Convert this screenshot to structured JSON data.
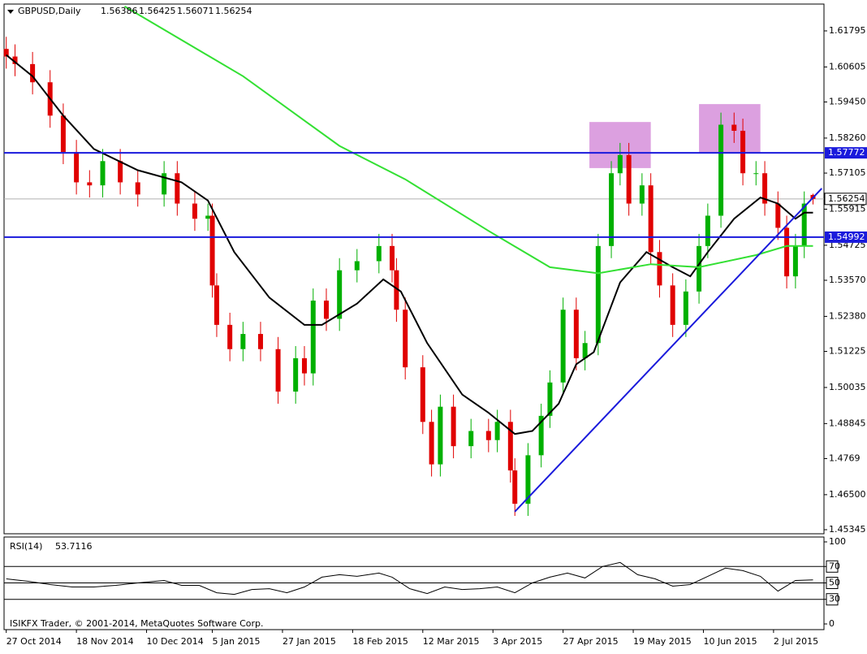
{
  "chart_data": [
    {
      "type": "candlestick",
      "title": "GBPUSD,Daily",
      "x": [
        0,
        2,
        6,
        10,
        13,
        16,
        19,
        22,
        26,
        30,
        36,
        39,
        43,
        46,
        47,
        48,
        51,
        54,
        58,
        62,
        66,
        68,
        70,
        73,
        76,
        80,
        85,
        88,
        89,
        91,
        95,
        97,
        99,
        102,
        106,
        110,
        112,
        115,
        116,
        119,
        122,
        124,
        127,
        130,
        132,
        135,
        138,
        140,
        142,
        145,
        147,
        149,
        152,
        155,
        158,
        160,
        163,
        166,
        168,
        171,
        173,
        176,
        178,
        180,
        182,
        184
      ],
      "open": [
        1.612,
        1.6095,
        1.607,
        1.601,
        1.59,
        1.578,
        1.568,
        1.567,
        1.575,
        1.568,
        1.564,
        1.571,
        1.561,
        1.556,
        1.557,
        1.534,
        1.521,
        1.513,
        1.518,
        1.513,
        1.499,
        1.51,
        1.505,
        1.529,
        1.523,
        1.539,
        1.542,
        1.547,
        1.539,
        1.526,
        1.507,
        1.489,
        1.475,
        1.494,
        1.481,
        1.486,
        1.483,
        1.489,
        1.473,
        1.462,
        1.478,
        1.491,
        1.502,
        1.526,
        1.51,
        1.515,
        1.547,
        1.571,
        1.577,
        1.561,
        1.567,
        1.545,
        1.534,
        1.521,
        1.532,
        1.547,
        1.557,
        1.587,
        1.585,
        1.571,
        1.571,
        1.561,
        1.553,
        1.537,
        1.547,
        1.56386
      ],
      "high": [
        1.616,
        1.6135,
        1.611,
        1.605,
        1.594,
        1.582,
        1.572,
        1.579,
        1.579,
        1.572,
        1.575,
        1.575,
        1.565,
        1.561,
        1.561,
        1.538,
        1.525,
        1.522,
        1.522,
        1.517,
        1.514,
        1.514,
        1.533,
        1.533,
        1.543,
        1.546,
        1.551,
        1.551,
        1.543,
        1.53,
        1.511,
        1.493,
        1.498,
        1.498,
        1.49,
        1.49,
        1.493,
        1.493,
        1.477,
        1.482,
        1.495,
        1.506,
        1.53,
        1.53,
        1.519,
        1.551,
        1.575,
        1.581,
        1.581,
        1.571,
        1.571,
        1.549,
        1.538,
        1.536,
        1.551,
        1.561,
        1.591,
        1.591,
        1.589,
        1.575,
        1.575,
        1.565,
        1.557,
        1.551,
        1.565,
        1.56425
      ],
      "low": [
        1.6055,
        1.603,
        1.597,
        1.586,
        1.574,
        1.564,
        1.563,
        1.563,
        1.564,
        1.56,
        1.56,
        1.557,
        1.552,
        1.552,
        1.53,
        1.517,
        1.509,
        1.509,
        1.509,
        1.495,
        1.495,
        1.501,
        1.501,
        1.519,
        1.519,
        1.535,
        1.538,
        1.535,
        1.522,
        1.503,
        1.485,
        1.471,
        1.471,
        1.477,
        1.477,
        1.479,
        1.479,
        1.469,
        1.458,
        1.458,
        1.474,
        1.487,
        1.498,
        1.506,
        1.506,
        1.511,
        1.543,
        1.567,
        1.557,
        1.557,
        1.541,
        1.53,
        1.517,
        1.517,
        1.528,
        1.543,
        1.553,
        1.581,
        1.567,
        1.567,
        1.557,
        1.549,
        1.533,
        1.533,
        1.543,
        1.56071
      ],
      "close": [
        1.6095,
        1.607,
        1.601,
        1.59,
        1.578,
        1.568,
        1.567,
        1.575,
        1.568,
        1.564,
        1.571,
        1.561,
        1.556,
        1.557,
        1.534,
        1.521,
        1.513,
        1.518,
        1.513,
        1.499,
        1.51,
        1.505,
        1.529,
        1.523,
        1.539,
        1.542,
        1.547,
        1.539,
        1.526,
        1.507,
        1.489,
        1.475,
        1.494,
        1.481,
        1.486,
        1.483,
        1.489,
        1.473,
        1.462,
        1.478,
        1.491,
        1.502,
        1.526,
        1.51,
        1.515,
        1.547,
        1.571,
        1.577,
        1.561,
        1.567,
        1.545,
        1.534,
        1.521,
        1.532,
        1.547,
        1.557,
        1.587,
        1.585,
        1.571,
        1.571,
        1.561,
        1.553,
        1.537,
        1.547,
        1.561,
        1.56254
      ],
      "up_color": "#00b000",
      "down_color": "#e00000",
      "lines": [
        {
          "color": "#000000",
          "x": [
            0,
            6,
            13,
            20,
            30,
            40,
            46,
            52,
            60,
            68,
            72,
            80,
            86,
            90,
            96,
            104,
            110,
            116,
            120,
            126,
            130,
            134,
            140,
            146,
            152,
            156,
            160,
            166,
            172,
            176,
            180,
            182,
            184
          ],
          "values": [
            1.61,
            1.603,
            1.59,
            1.579,
            1.572,
            1.568,
            1.562,
            1.545,
            1.53,
            1.521,
            1.521,
            1.528,
            1.536,
            1.532,
            1.515,
            1.498,
            1.492,
            1.485,
            1.486,
            1.495,
            1.508,
            1.512,
            1.535,
            1.545,
            1.54,
            1.537,
            1.545,
            1.556,
            1.563,
            1.561,
            1.556,
            1.558,
            1.558
          ]
        },
        {
          "color": "#33e033",
          "x": [
            27,
            54,
            76,
            91,
            110,
            124,
            135,
            147,
            158,
            171,
            178,
            184
          ],
          "values": [
            1.626,
            1.603,
            1.58,
            1.569,
            1.552,
            1.54,
            1.538,
            1.541,
            1.54,
            1.544,
            1.547,
            1.547
          ]
        },
        {
          "color": "#1a1adc",
          "x": [
            116,
            186
          ],
          "values": [
            1.4594,
            1.566
          ]
        }
      ],
      "hlines": [
        {
          "value": 1.57772,
          "color": "#1a1adc"
        },
        {
          "value": 1.54992,
          "color": "#1a1adc"
        }
      ],
      "price_line": {
        "value": 1.56254,
        "color": "#b0b0b0"
      },
      "zones": [
        {
          "x": [
            133,
            147
          ],
          "y": [
            1.5727,
            1.5879
          ],
          "color": "#dca0e0"
        },
        {
          "x": [
            158,
            172
          ],
          "y": [
            1.5777,
            1.5938
          ],
          "color": "#dca0e0"
        }
      ],
      "xlim": [
        -0.5,
        186.5
      ],
      "ylim": [
        1.45211,
        1.62679
      ],
      "yticks": [
        1.61795,
        1.60605,
        {
          "value": 1.5945,
          "label": "1.59450"
        },
        {
          "value": 1.5826,
          "label": "1.58260"
        },
        1.57105,
        1.55915,
        1.54725,
        {
          "value": 1.5357,
          "label": "1.53570"
        },
        {
          "value": 1.5238,
          "label": "1.52380"
        },
        1.51225,
        1.50035,
        1.48845,
        1.4769,
        {
          "value": 1.465,
          "label": "1.46500"
        },
        1.45345
      ],
      "xticks": [
        {
          "value": 0,
          "label": "27 Oct 2014"
        },
        {
          "value": 16,
          "label": "18 Nov 2014"
        },
        {
          "value": 32,
          "label": "10 Dec 2014"
        },
        {
          "value": 47,
          "label": "5 Jan 2015"
        },
        {
          "value": 63,
          "label": "27 Jan 2015"
        },
        {
          "value": 79,
          "label": "18 Feb 2015"
        },
        {
          "value": 95,
          "label": "12 Mar 2015"
        },
        {
          "value": 111,
          "label": "3 Apr 2015"
        },
        {
          "value": 127,
          "label": "27 Apr 2015"
        },
        {
          "value": 143,
          "label": "19 May 2015"
        },
        {
          "value": 159,
          "label": "10 Jun 2015"
        },
        {
          "value": 175,
          "label": "2 Jul 2015"
        }
      ]
    },
    {
      "type": "line",
      "title": "RSI(14)",
      "color": "#000000",
      "x": [
        0,
        5,
        10,
        15,
        20,
        25,
        30,
        36,
        40,
        44,
        48,
        52,
        56,
        60,
        64,
        68,
        72,
        76,
        80,
        85,
        88,
        92,
        96,
        100,
        104,
        108,
        112,
        116,
        120,
        124,
        128,
        132,
        136,
        140,
        144,
        148,
        152,
        156,
        160,
        164,
        168,
        172,
        176,
        180,
        184
      ],
      "values": [
        55,
        52,
        48,
        45,
        45,
        47,
        50,
        53,
        47,
        47,
        38,
        36,
        42,
        43,
        38,
        45,
        57,
        60,
        58,
        62,
        57,
        43,
        37,
        45,
        42,
        43,
        45,
        38,
        50,
        57,
        62,
        56,
        70,
        75,
        60,
        55,
        46,
        48,
        58,
        68,
        65,
        58,
        40,
        53,
        53.7116
      ],
      "xlim": [
        -0.5,
        186.5
      ],
      "ylim": [
        0,
        100
      ],
      "yticks": [
        0,
        30,
        50,
        70,
        100
      ],
      "levels": [
        30,
        50,
        70
      ]
    }
  ],
  "footer": "ISIKFX Trader, © 2001-2014, MetaQuotes Software Corp."
}
